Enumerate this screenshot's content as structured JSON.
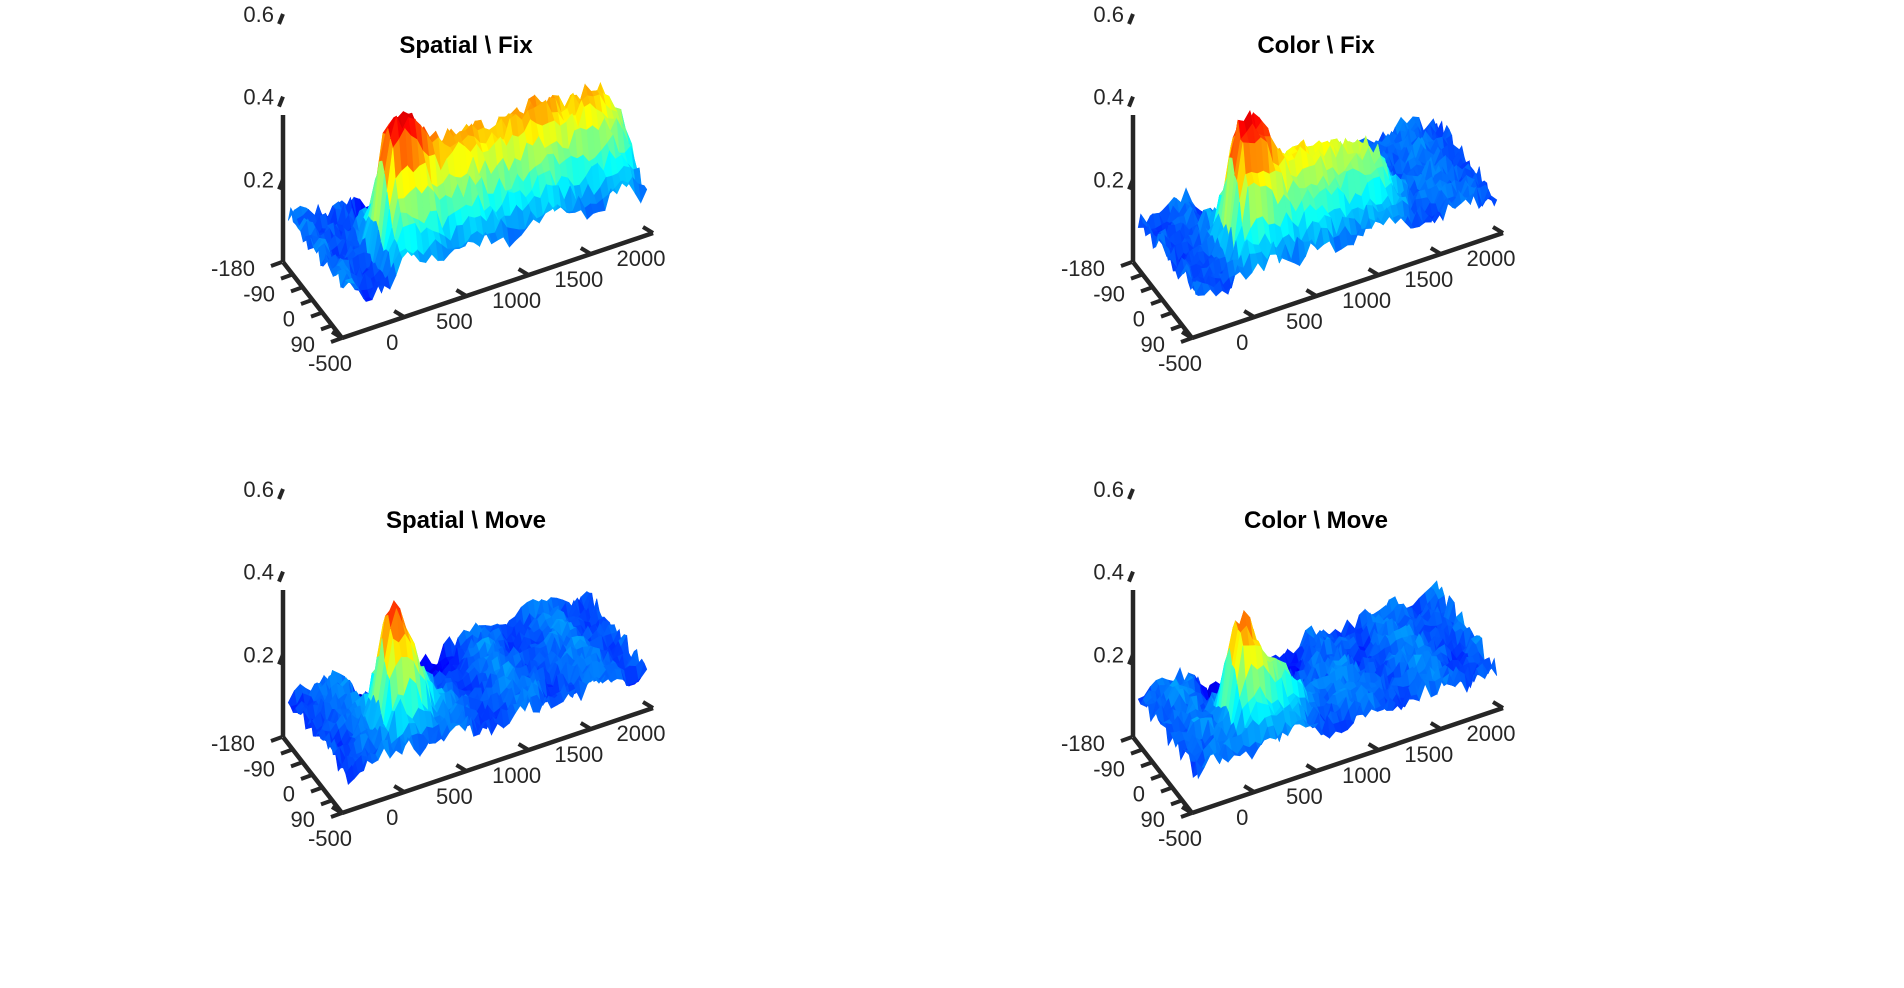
{
  "chart_data": [
    {
      "type": "surface",
      "title": "Spatial \\ Fix",
      "x_ticks": [
        "-500",
        "0",
        "500",
        "1000",
        "1500",
        "2000"
      ],
      "y_ticks": [
        "-180",
        "-90",
        "0",
        "90"
      ],
      "z_ticks": [
        "0.2",
        "0.4",
        "0.6"
      ],
      "xlim": [
        -500,
        2000
      ],
      "ylim": [
        -180,
        90
      ],
      "zlim": [
        0,
        0.6
      ],
      "colormap": "jet",
      "grid": "off",
      "surface": {
        "baseline": 0.1,
        "peak_value": 0.42,
        "peak_time_ms": [
          0,
          300
        ],
        "sustained_value": 0.32,
        "sustained_until_ms": 1950,
        "peak_angle_deg": 0,
        "angular_width_deg": 55
      }
    },
    {
      "type": "surface",
      "title": "Color \\ Fix",
      "x_ticks": [
        "-500",
        "0",
        "500",
        "1000",
        "1500",
        "2000"
      ],
      "y_ticks": [
        "-180",
        "-90",
        "0",
        "90"
      ],
      "z_ticks": [
        "0.2",
        "0.4",
        "0.6"
      ],
      "xlim": [
        -500,
        2000
      ],
      "ylim": [
        -180,
        90
      ],
      "zlim": [
        0,
        0.6
      ],
      "colormap": "jet",
      "grid": "off",
      "surface": {
        "baseline": 0.1,
        "peak_value": 0.42,
        "peak_time_ms": [
          0,
          300
        ],
        "sustained_value": 0.28,
        "sustained_until_ms": 1200,
        "peak_angle_deg": 0,
        "angular_width_deg": 55
      }
    },
    {
      "type": "surface",
      "title": "Spatial \\ Move",
      "x_ticks": [
        "-500",
        "0",
        "500",
        "1000",
        "1500",
        "2000"
      ],
      "y_ticks": [
        "-180",
        "-90",
        "0",
        "90"
      ],
      "z_ticks": [
        "0.2",
        "0.4",
        "0.6"
      ],
      "xlim": [
        -500,
        2000
      ],
      "ylim": [
        -180,
        90
      ],
      "zlim": [
        0,
        0.6
      ],
      "colormap": "jet",
      "grid": "off",
      "surface": {
        "baseline": 0.1,
        "peak_value": 0.4,
        "peak_time_ms": [
          0,
          250
        ],
        "sustained_value": 0.12,
        "sustained_until_ms": 400,
        "peak_angle_deg": 0,
        "angular_width_deg": 50
      }
    },
    {
      "type": "surface",
      "title": "Color \\ Move",
      "x_ticks": [
        "-500",
        "0",
        "500",
        "1000",
        "1500",
        "2000"
      ],
      "y_ticks": [
        "-180",
        "-90",
        "0",
        "90"
      ],
      "z_ticks": [
        "0.2",
        "0.4",
        "0.6"
      ],
      "xlim": [
        -500,
        2000
      ],
      "ylim": [
        -180,
        90
      ],
      "zlim": [
        0,
        0.6
      ],
      "colormap": "jet",
      "grid": "off",
      "surface": {
        "baseline": 0.1,
        "peak_value": 0.39,
        "peak_time_ms": [
          0,
          200
        ],
        "sustained_value": 0.2,
        "sustained_until_ms": 500,
        "peak_angle_deg": 0,
        "angular_width_deg": 50
      }
    }
  ]
}
